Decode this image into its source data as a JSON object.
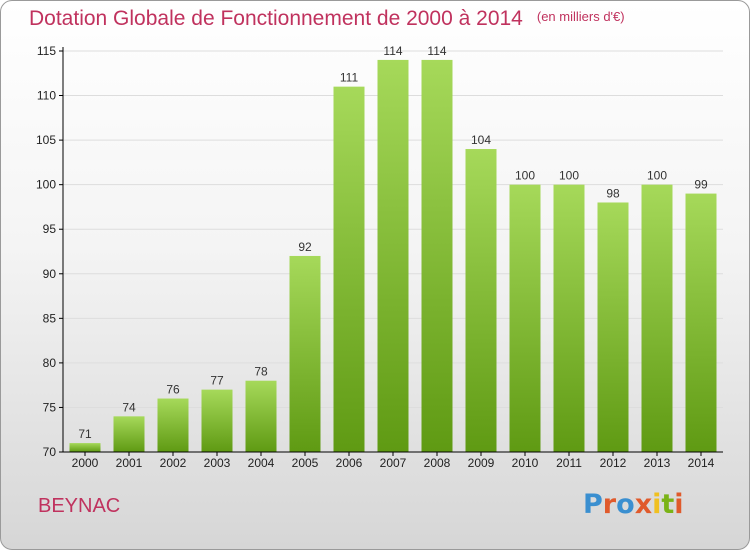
{
  "title": "Dotation Globale de Fonctionnement de 2000 à 2014",
  "unit": "(en milliers d'€)",
  "commune": "BEYNAC",
  "logo": {
    "text": "Proxiti",
    "colors": [
      "#3a8fd0",
      "#e05a2b",
      "#3a8fd0",
      "#e05a2b",
      "#f0c020",
      "#7ab317",
      "#e05a2b"
    ]
  },
  "colors": {
    "title": "#c0325e",
    "bar_top": "#a6d95a",
    "bar_bottom": "#5f9a13",
    "axis": "#000000",
    "grid": "#dddddd"
  },
  "chart_data": {
    "type": "bar",
    "title": "Dotation Globale de Fonctionnement de 2000 à 2014",
    "subtitle": "(en milliers d'€)",
    "categories": [
      "2000",
      "2001",
      "2002",
      "2003",
      "2004",
      "2005",
      "2006",
      "2007",
      "2008",
      "2009",
      "2010",
      "2011",
      "2012",
      "2013",
      "2014"
    ],
    "values": [
      71,
      74,
      76,
      77,
      78,
      92,
      111,
      114,
      114,
      104,
      100,
      100,
      98,
      100,
      99
    ],
    "ylim": [
      70,
      115
    ],
    "yticks": [
      70,
      75,
      80,
      85,
      90,
      95,
      100,
      105,
      110,
      115
    ],
    "grid": true,
    "legend": "none"
  }
}
